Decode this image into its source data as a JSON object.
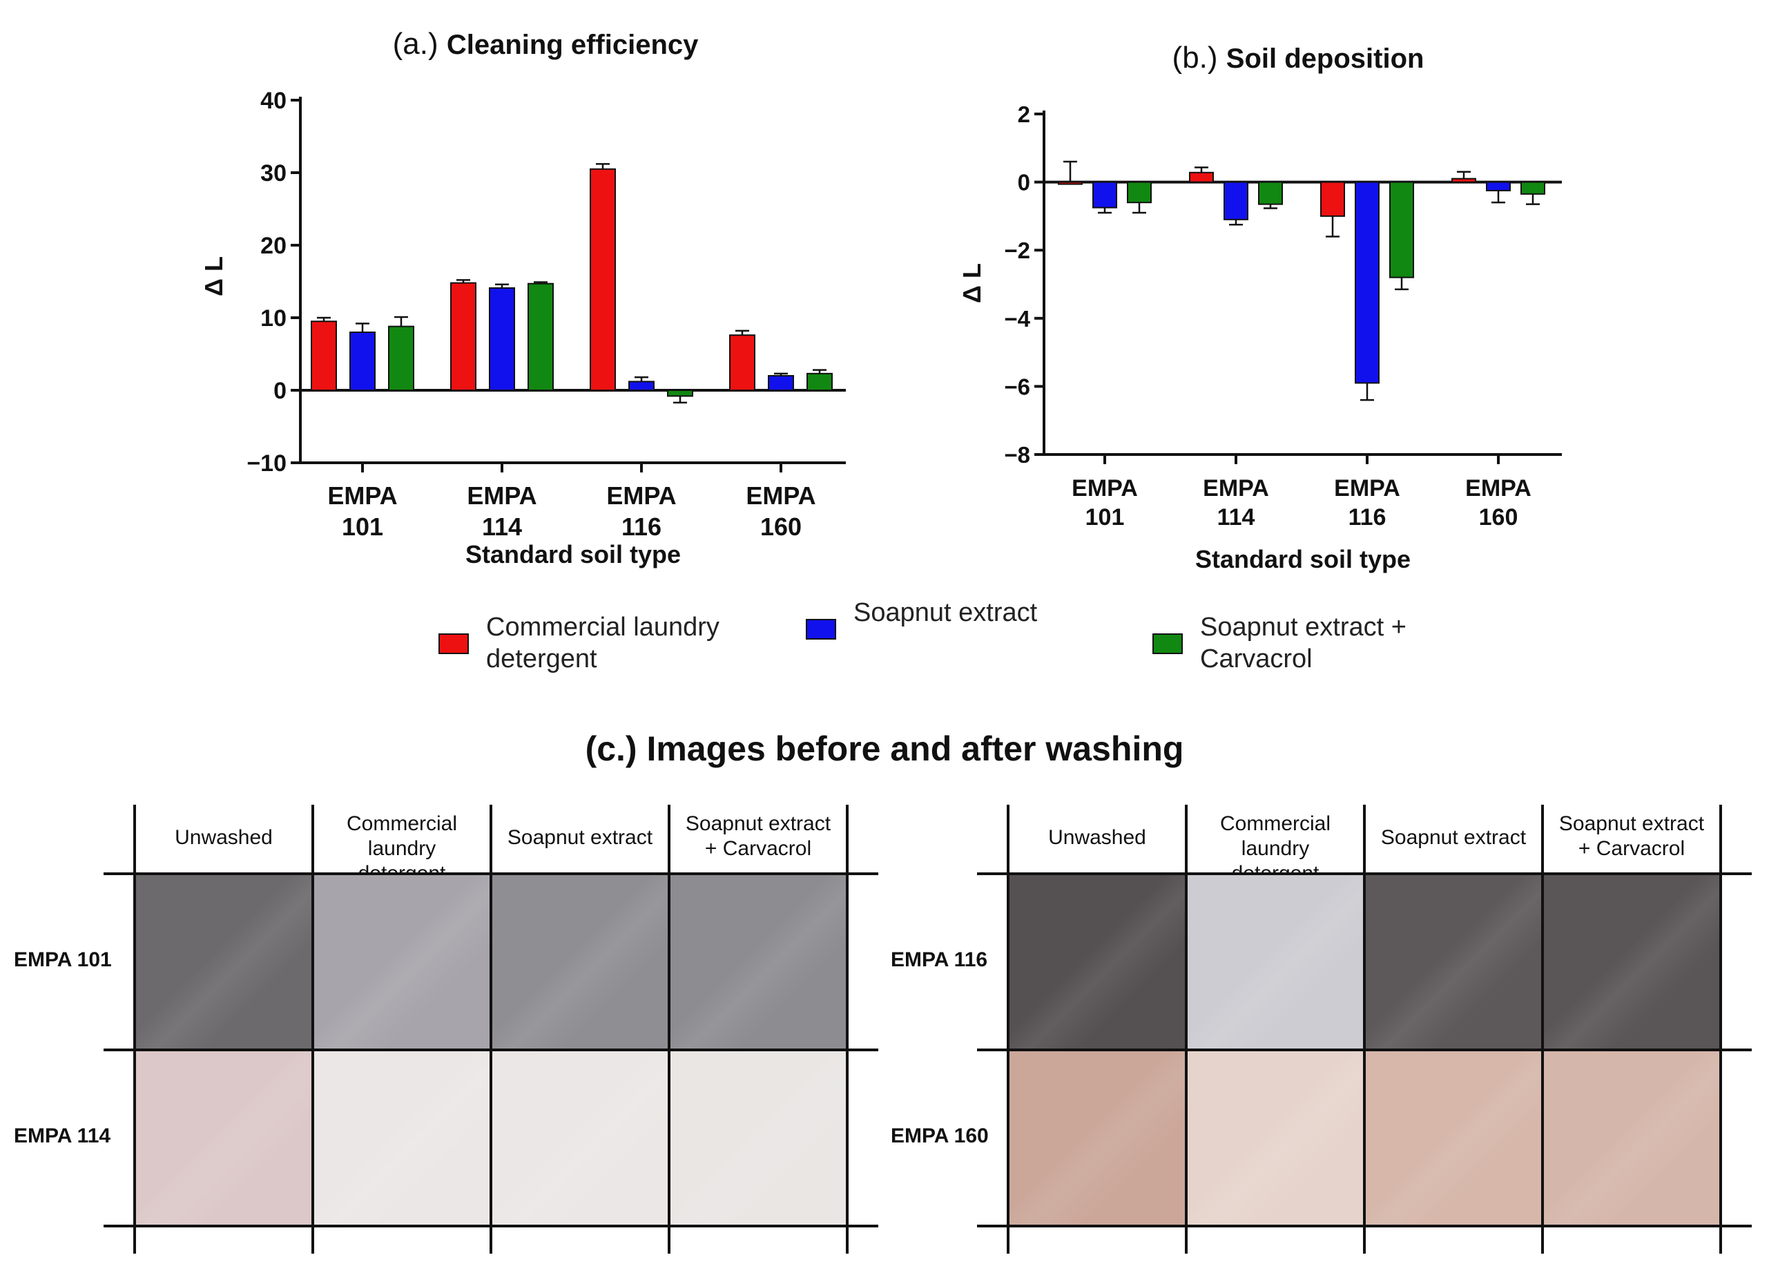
{
  "chart_data": [
    {
      "type": "bar",
      "panel": "(a.)",
      "title": "Cleaning efficiency",
      "xlabel": "Standard soil type",
      "ylabel": "Δ L",
      "ylim": [
        -10,
        40
      ],
      "yticks": [
        -10,
        0,
        10,
        20,
        30,
        40
      ],
      "categories": [
        [
          "EMPA",
          "101"
        ],
        [
          "EMPA",
          "114"
        ],
        [
          "EMPA",
          "116"
        ],
        [
          "EMPA",
          "160"
        ]
      ],
      "series": [
        {
          "name": "Commercial laundry detergent",
          "color": "#ee1111",
          "values": [
            9.5,
            14.8,
            30.5,
            7.6
          ],
          "errors": [
            0.5,
            0.4,
            0.7,
            0.6
          ]
        },
        {
          "name": "Soapnut extract",
          "color": "#1111ee",
          "values": [
            8.0,
            14.1,
            1.2,
            2.0
          ],
          "errors": [
            1.2,
            0.5,
            0.6,
            0.3
          ]
        },
        {
          "name": "Soapnut extract + Carvacrol",
          "color": "#118811",
          "values": [
            8.8,
            14.7,
            -0.8,
            2.3
          ],
          "errors": [
            1.3,
            0.2,
            0.9,
            0.5
          ]
        }
      ]
    },
    {
      "type": "bar",
      "panel": "(b.)",
      "title": "Soil deposition",
      "xlabel": "Standard soil type",
      "ylabel": "Δ L",
      "ylim": [
        -8,
        2
      ],
      "yticks": [
        -8,
        -6,
        -4,
        -2,
        0,
        2
      ],
      "categories": [
        [
          "EMPA",
          "101"
        ],
        [
          "EMPA",
          "114"
        ],
        [
          "EMPA",
          "116"
        ],
        [
          "EMPA",
          "160"
        ]
      ],
      "series": [
        {
          "name": "Commercial laundry detergent",
          "color": "#ee1111",
          "values": [
            0.0,
            0.28,
            -1.0,
            0.1
          ],
          "errors": [
            0.6,
            0.15,
            0.6,
            0.2
          ]
        },
        {
          "name": "Soapnut extract",
          "color": "#1111ee",
          "values": [
            -0.75,
            -1.1,
            -5.9,
            -0.25
          ],
          "errors": [
            0.15,
            0.15,
            0.5,
            0.35
          ]
        },
        {
          "name": "Soapnut extract + Carvacrol",
          "color": "#118811",
          "values": [
            -0.6,
            -0.65,
            -2.8,
            -0.35
          ],
          "errors": [
            0.3,
            0.12,
            0.35,
            0.3
          ]
        }
      ]
    }
  ],
  "legend": [
    {
      "line1": "Commercial laundry",
      "line2": "detergent",
      "color": "#ee1111"
    },
    {
      "line1": "Soapnut extract",
      "line2": "",
      "color": "#1111ee"
    },
    {
      "line1": "Soapnut extract +",
      "line2": "Carvacrol",
      "color": "#118811"
    }
  ],
  "images_section": {
    "title": "(c.) Images before and after washing",
    "columns": [
      {
        "line1": "Unwashed",
        "line2": ""
      },
      {
        "line1": "Commercial laundry",
        "line2": "detergent"
      },
      {
        "line1": "Soapnut extract",
        "line2": ""
      },
      {
        "line1": "Soapnut extract",
        "line2": "+ Carvacrol"
      }
    ],
    "left_grid": {
      "rows": [
        "EMPA 101",
        "EMPA 114"
      ],
      "swatch_colors": [
        [
          "#6c6a6c",
          "#a7a5ab",
          "#8f8e93",
          "#8d8c91"
        ],
        [
          "#dcc8c8",
          "#ebe7e6",
          "#ebe7e6",
          "#e9e6e4"
        ]
      ]
    },
    "right_grid": {
      "rows": [
        "EMPA 116",
        "EMPA 160"
      ],
      "swatch_colors": [
        [
          "#555051",
          "#cdccd2",
          "#5d595a",
          "#5a5556"
        ],
        [
          "#cba79a",
          "#e6d4cc",
          "#d6b7aa",
          "#d5b6aa"
        ]
      ]
    }
  }
}
